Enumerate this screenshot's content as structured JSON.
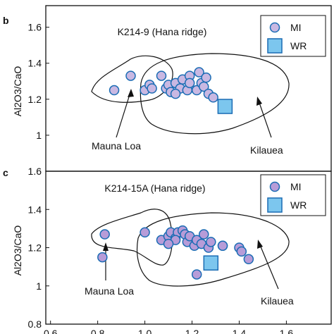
{
  "chart_data": [
    {
      "type": "scatter",
      "panel": "b",
      "annotation": "K214-9 (Hana ridge)",
      "y_label": "Al2O3/CaO",
      "field_labels": [
        "Mauna Loa",
        "Kilauea"
      ],
      "xlim": [
        0.58,
        1.79
      ],
      "ylim": [
        0.8,
        1.72
      ],
      "yticks": [
        1,
        1.2,
        1.4,
        1.6
      ],
      "series": [
        {
          "name": "MI",
          "color": "#c9b8e2",
          "marker": "circle",
          "x": [
            0.87,
            0.94,
            1.0,
            1.02,
            1.03,
            1.07,
            1.09,
            1.1,
            1.11,
            1.13,
            1.15,
            1.16,
            1.18,
            1.19,
            1.22,
            1.23,
            1.24,
            1.25,
            1.26,
            1.27,
            1.29,
            1.19,
            1.13
          ],
          "values": [
            1.25,
            1.33,
            1.25,
            1.28,
            1.26,
            1.33,
            1.26,
            1.28,
            1.24,
            1.29,
            1.26,
            1.31,
            1.25,
            1.33,
            1.25,
            1.35,
            1.29,
            1.27,
            1.32,
            1.23,
            1.21,
            1.29,
            1.23
          ]
        },
        {
          "name": "WR",
          "color": "#7cc6ee",
          "marker": "square",
          "x": [
            1.34
          ],
          "values": [
            1.16
          ]
        }
      ]
    },
    {
      "type": "scatter",
      "panel": "c",
      "annotation": "K214-15A (Hana ridge)",
      "y_label": "Al2O3/CaO",
      "field_labels": [
        "Mauna Loa",
        "Kilauea"
      ],
      "xlim": [
        0.58,
        1.79
      ],
      "ylim": [
        0.8,
        1.6
      ],
      "yticks": [
        0.8,
        1,
        1.2,
        1.4,
        1.6
      ],
      "xticks": [
        0.6,
        0.8,
        {
          "value": 1,
          "label": "1.0"
        },
        1.2,
        1.4,
        1.6
      ],
      "series": [
        {
          "name": "MI",
          "color": "#b79cd8",
          "marker": "circle",
          "x": [
            0.83,
            0.82,
            1.0,
            1.07,
            1.1,
            1.11,
            1.13,
            1.14,
            1.16,
            1.17,
            1.18,
            1.19,
            1.21,
            1.22,
            1.24,
            1.25,
            1.27,
            1.28,
            1.33,
            1.33,
            1.4,
            1.41,
            1.44,
            1.22,
            1.13,
            1.1
          ],
          "values": [
            1.27,
            1.15,
            1.28,
            1.24,
            1.26,
            1.28,
            1.25,
            1.28,
            1.29,
            1.27,
            1.23,
            1.26,
            1.21,
            1.24,
            1.22,
            1.27,
            1.2,
            1.23,
            1.21,
            1.21,
            1.2,
            1.18,
            1.14,
            1.06,
            1.24,
            1.22
          ]
        },
        {
          "name": "WR",
          "color": "#7cc6ee",
          "marker": "square",
          "x": [
            1.28
          ],
          "values": [
            1.12
          ]
        }
      ]
    }
  ]
}
